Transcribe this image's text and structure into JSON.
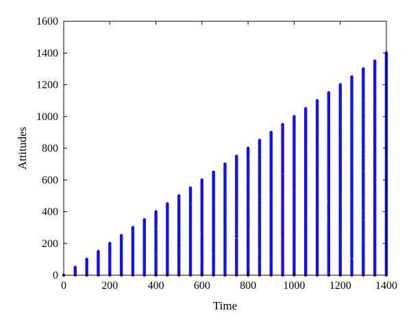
{
  "chart_data": {
    "type": "scatter",
    "title": "",
    "xlabel": "Time",
    "ylabel": "Attitudes",
    "xlim": [
      0,
      1400
    ],
    "ylim": [
      0,
      1600
    ],
    "xticks": [
      "0",
      "200",
      "400",
      "600",
      "800",
      "1000",
      "1200",
      "1400"
    ],
    "yticks": [
      "0",
      "200",
      "400",
      "600",
      "800",
      "1000",
      "1200",
      "1400",
      "1600"
    ],
    "grid": false,
    "legend": "none",
    "marker_color": "#1414e6",
    "series": [
      {
        "points_description": "At each sampled time t (every 50 units from 0 to 1400), attitude values are spread between 0 and t.",
        "x_step": 50,
        "x_min": 0,
        "x_max": 1400,
        "y_min_per_x": 0,
        "y_max_equals_x": true
      }
    ]
  }
}
